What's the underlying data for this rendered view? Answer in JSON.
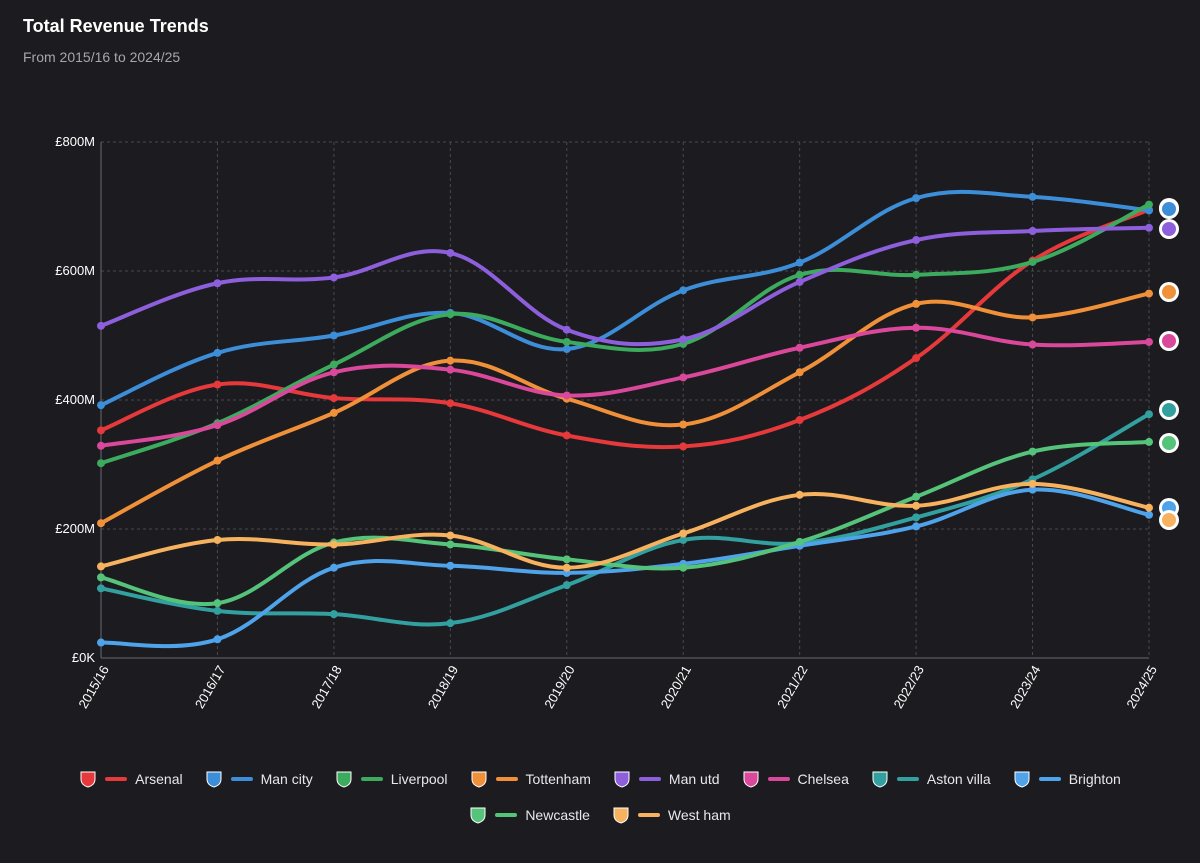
{
  "header": {
    "title": "Total Revenue Trends",
    "subtitle": "From 2015/16 to 2024/25"
  },
  "chart_data": {
    "type": "line",
    "title": "Total Revenue Trends",
    "subtitle": "From 2015/16 to 2024/25",
    "xlabel": "",
    "ylabel": "",
    "x": [
      "2015/16",
      "2016/17",
      "2017/18",
      "2018/19",
      "2019/20",
      "2020/21",
      "2021/22",
      "2022/23",
      "2023/24",
      "2024/25"
    ],
    "ylim": [
      0,
      800
    ],
    "yticks": [
      0,
      200,
      400,
      600,
      800
    ],
    "ytick_labels": [
      "£0K",
      "£200M",
      "£400M",
      "£600M",
      "£800M"
    ],
    "grid": true,
    "legend_position": "bottom",
    "series": [
      {
        "name": "Arsenal",
        "color": "#e5393c",
        "badge": "arsenal-crest-icon",
        "values": [
          353,
          424,
          403,
          395,
          345,
          328,
          369,
          465,
          616,
          695
        ]
      },
      {
        "name": "Man city",
        "color": "#3d8ed8",
        "badge": "man-city-crest-icon",
        "values": [
          392,
          473,
          500,
          535,
          479,
          570,
          613,
          713,
          715,
          694
        ]
      },
      {
        "name": "Liverpool",
        "color": "#3cab5e",
        "badge": "liverpool-crest-icon",
        "values": [
          302,
          364,
          455,
          533,
          490,
          487,
          594,
          594,
          614,
          703
        ]
      },
      {
        "name": "Tottenham",
        "color": "#f0913a",
        "badge": "tottenham-crest-icon",
        "values": [
          209,
          306,
          380,
          461,
          402,
          362,
          443,
          549,
          528,
          565
        ]
      },
      {
        "name": "Man utd",
        "color": "#8e5fdc",
        "badge": "man-utd-crest-icon",
        "values": [
          515,
          581,
          590,
          628,
          509,
          494,
          583,
          648,
          662,
          667
        ]
      },
      {
        "name": "Chelsea",
        "color": "#d9489a",
        "badge": "chelsea-crest-icon",
        "values": [
          329,
          361,
          443,
          447,
          407,
          435,
          481,
          512,
          486,
          490
        ]
      },
      {
        "name": "Aston villa",
        "color": "#33a0a0",
        "badge": "aston-villa-crest-icon",
        "values": [
          108,
          73,
          68,
          54,
          113,
          183,
          178,
          218,
          277,
          378
        ]
      },
      {
        "name": "Brighton",
        "color": "#4fa3ea",
        "badge": "brighton-crest-icon",
        "values": [
          24,
          29,
          140,
          143,
          132,
          146,
          174,
          204,
          261,
          222
        ]
      },
      {
        "name": "Newcastle",
        "color": "#55c47a",
        "badge": "newcastle-crest-icon",
        "values": [
          125,
          85,
          179,
          176,
          153,
          140,
          180,
          250,
          320,
          335
        ]
      },
      {
        "name": "West ham",
        "color": "#f6b25e",
        "badge": "west-ham-crest-icon",
        "values": [
          142,
          183,
          176,
          190,
          140,
          193,
          253,
          236,
          270,
          233
        ]
      }
    ]
  }
}
